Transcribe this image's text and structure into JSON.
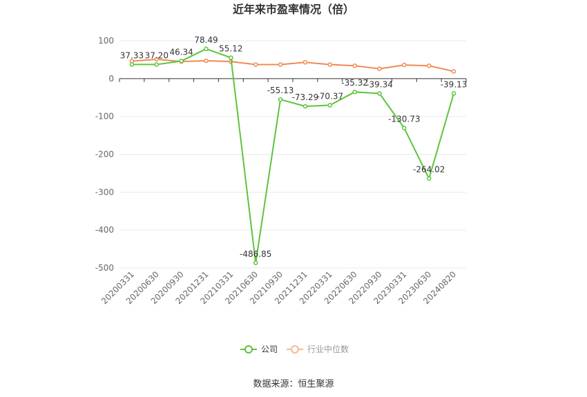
{
  "chart_data": {
    "type": "line",
    "title": "近年来市盈率情况（倍）",
    "categories": [
      "20200331",
      "20200630",
      "20200930",
      "20201231",
      "20210331",
      "20210630",
      "20210930",
      "20211231",
      "20220331",
      "20220630",
      "20220930",
      "20230331",
      "20230630",
      "20240820"
    ],
    "series": [
      {
        "name": "公司",
        "color": "#5cc43a",
        "values": [
          37.33,
          37.2,
          46.34,
          78.49,
          55.12,
          -486.85,
          -55.13,
          -73.29,
          -70.37,
          -35.32,
          -39.34,
          -130.73,
          -264.02,
          -39.13
        ],
        "labels": [
          "37.33",
          "37.20",
          "46.34",
          "78.49",
          "55.12",
          "-486.85",
          "-55.13",
          "-73.29",
          "-70.37",
          "-35.32",
          "-39.34",
          "-130.73",
          "-264.02",
          "-39.13"
        ]
      },
      {
        "name": "行业中位数",
        "color": "#f08a50",
        "values": [
          46,
          51,
          45,
          47,
          45,
          37,
          37,
          43,
          37,
          34,
          26,
          36,
          34,
          19
        ]
      }
    ],
    "yticks": [
      "100",
      "0",
      "-100",
      "-200",
      "-300",
      "-400",
      "-500"
    ],
    "ylim": [
      -500,
      100
    ],
    "grid": true,
    "legend_position": "bottom-center",
    "source": "数据来源：恒生聚源"
  }
}
